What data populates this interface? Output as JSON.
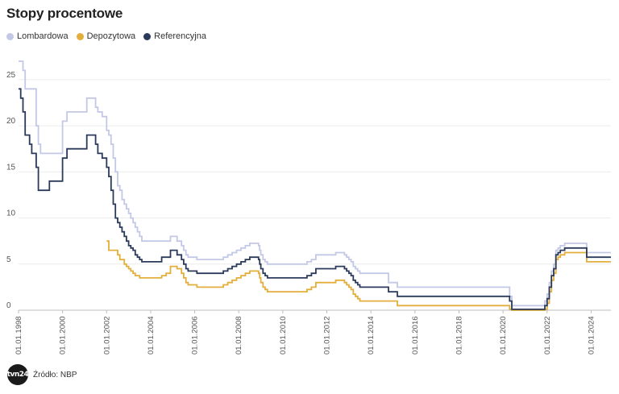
{
  "chart_data": {
    "type": "line",
    "title": "Stopy procentowe",
    "xlabel": "",
    "ylabel": "",
    "ylim": [
      0,
      27
    ],
    "yticks": [
      0,
      5,
      10,
      15,
      20,
      25
    ],
    "xticks": [
      "01.01.1998",
      "01.01.2000",
      "01.01.2002",
      "01.01.2004",
      "01.01.2006",
      "01.01.2008",
      "01.01.2010",
      "01.01.2012",
      "01.01.2014",
      "01.01.2016",
      "01.01.2018",
      "01.01.2020",
      "01.01.2022",
      "01.01.2024"
    ],
    "xtick_years": [
      1998,
      2000,
      2002,
      2004,
      2006,
      2008,
      2010,
      2012,
      2014,
      2016,
      2018,
      2020,
      2022,
      2024
    ],
    "xlim": [
      1998.0,
      2024.9
    ],
    "step": true,
    "series": [
      {
        "name": "Lombardowa",
        "color": "#c3c8e6",
        "x": [
          1998.0,
          1998.2,
          1998.3,
          1998.5,
          1998.8,
          1998.9,
          1999.0,
          1999.1,
          1999.9,
          2000.0,
          2000.2,
          2000.6,
          2001.1,
          2001.3,
          2001.5,
          2001.6,
          2001.8,
          2002.0,
          2002.1,
          2002.2,
          2002.3,
          2002.4,
          2002.5,
          2002.6,
          2002.7,
          2002.8,
          2002.9,
          2003.0,
          2003.1,
          2003.2,
          2003.3,
          2003.4,
          2003.5,
          2003.6,
          2004.5,
          2004.7,
          2004.9,
          2005.2,
          2005.4,
          2005.5,
          2005.6,
          2005.7,
          2006.1,
          2006.3,
          2007.3,
          2007.5,
          2007.7,
          2007.9,
          2008.1,
          2008.3,
          2008.5,
          2008.9,
          2008.95,
          2009.0,
          2009.1,
          2009.2,
          2009.3,
          2009.5,
          2010.9,
          2011.1,
          2011.3,
          2011.5,
          2012.4,
          2012.8,
          2012.9,
          2013.0,
          2013.1,
          2013.2,
          2013.3,
          2013.4,
          2013.5,
          2014.8,
          2015.2,
          2020.2,
          2020.3,
          2020.4,
          2021.8,
          2021.9,
          2022.0,
          2022.1,
          2022.2,
          2022.3,
          2022.4,
          2022.5,
          2022.6,
          2022.8,
          2023.7,
          2023.8,
          2024.9
        ],
        "y": [
          27.0,
          26.0,
          24.0,
          24.0,
          20.0,
          18.0,
          17.0,
          17.0,
          17.0,
          20.5,
          21.5,
          21.5,
          23.0,
          23.0,
          22.0,
          21.5,
          21.0,
          19.5,
          19.0,
          18.0,
          16.5,
          15.0,
          13.5,
          13.0,
          12.0,
          11.5,
          11.0,
          10.5,
          10.0,
          9.5,
          9.0,
          8.5,
          8.0,
          7.5,
          7.5,
          7.5,
          8.0,
          7.5,
          7.0,
          6.5,
          6.0,
          5.75,
          5.5,
          5.5,
          5.75,
          6.0,
          6.25,
          6.5,
          6.75,
          7.0,
          7.25,
          7.0,
          6.5,
          6.0,
          5.5,
          5.25,
          5.0,
          5.0,
          5.0,
          5.25,
          5.5,
          6.0,
          6.25,
          6.0,
          5.75,
          5.5,
          5.25,
          4.75,
          4.5,
          4.25,
          4.0,
          3.0,
          2.5,
          2.5,
          1.5,
          0.5,
          0.5,
          1.0,
          1.75,
          3.0,
          4.25,
          5.0,
          6.5,
          6.75,
          7.0,
          7.25,
          7.25,
          6.25,
          6.25
        ]
      },
      {
        "name": "Depozytowa",
        "color": "#e3ae3b",
        "x": [
          2002.0,
          2002.1,
          2002.4,
          2002.5,
          2002.6,
          2002.7,
          2002.8,
          2002.9,
          2003.0,
          2003.1,
          2003.2,
          2003.3,
          2003.4,
          2003.5,
          2003.6,
          2004.5,
          2004.7,
          2004.9,
          2005.2,
          2005.4,
          2005.5,
          2005.6,
          2005.7,
          2006.1,
          2006.3,
          2007.3,
          2007.5,
          2007.7,
          2007.9,
          2008.1,
          2008.3,
          2008.5,
          2008.9,
          2008.95,
          2009.0,
          2009.1,
          2009.2,
          2009.3,
          2009.5,
          2010.9,
          2011.1,
          2011.3,
          2011.5,
          2012.4,
          2012.8,
          2012.9,
          2013.0,
          2013.1,
          2013.2,
          2013.3,
          2013.4,
          2013.5,
          2014.8,
          2015.2,
          2020.2,
          2020.3,
          2020.4,
          2021.8,
          2021.9,
          2022.0,
          2022.1,
          2022.2,
          2022.3,
          2022.4,
          2022.5,
          2022.6,
          2022.8,
          2023.7,
          2023.8,
          2024.9
        ],
        "y": [
          7.5,
          6.5,
          6.5,
          6.0,
          5.5,
          5.5,
          5.0,
          4.75,
          4.5,
          4.25,
          4.0,
          3.75,
          3.75,
          3.5,
          3.5,
          3.75,
          4.0,
          4.75,
          4.5,
          4.0,
          3.5,
          3.0,
          2.75,
          2.5,
          2.5,
          2.75,
          3.0,
          3.25,
          3.5,
          3.75,
          4.0,
          4.25,
          4.0,
          3.5,
          3.0,
          2.5,
          2.25,
          2.0,
          2.0,
          2.0,
          2.25,
          2.5,
          3.0,
          3.25,
          3.0,
          2.75,
          2.5,
          2.25,
          1.75,
          1.5,
          1.25,
          1.0,
          1.0,
          0.5,
          0.5,
          0.1,
          0.0,
          0.0,
          0.1,
          0.75,
          2.0,
          3.25,
          4.0,
          5.5,
          5.75,
          6.0,
          6.25,
          6.25,
          5.25,
          5.25
        ]
      },
      {
        "name": "Referencyjna",
        "color": "#2b3a5b",
        "x": [
          1998.0,
          1998.1,
          1998.2,
          1998.3,
          1998.5,
          1998.6,
          1998.8,
          1998.9,
          1999.0,
          1999.4,
          1999.9,
          2000.0,
          2000.2,
          2000.6,
          2001.1,
          2001.3,
          2001.5,
          2001.6,
          2001.8,
          2002.0,
          2002.1,
          2002.2,
          2002.3,
          2002.4,
          2002.5,
          2002.6,
          2002.7,
          2002.8,
          2002.9,
          2003.0,
          2003.1,
          2003.2,
          2003.3,
          2003.4,
          2003.5,
          2003.6,
          2004.5,
          2004.7,
          2004.9,
          2005.2,
          2005.4,
          2005.5,
          2005.6,
          2005.7,
          2006.1,
          2006.3,
          2007.3,
          2007.5,
          2007.7,
          2007.9,
          2008.1,
          2008.3,
          2008.5,
          2008.9,
          2008.95,
          2009.0,
          2009.1,
          2009.2,
          2009.3,
          2009.5,
          2010.9,
          2011.1,
          2011.3,
          2011.5,
          2012.4,
          2012.8,
          2012.9,
          2013.0,
          2013.1,
          2013.2,
          2013.3,
          2013.4,
          2013.5,
          2014.8,
          2015.2,
          2020.2,
          2020.3,
          2020.4,
          2021.8,
          2021.9,
          2022.0,
          2022.1,
          2022.2,
          2022.3,
          2022.4,
          2022.5,
          2022.6,
          2022.8,
          2023.7,
          2023.8,
          2024.9
        ],
        "y": [
          24.0,
          23.0,
          21.5,
          19.0,
          18.0,
          17.0,
          15.5,
          13.0,
          13.0,
          14.0,
          14.0,
          16.5,
          17.5,
          17.5,
          19.0,
          19.0,
          18.0,
          17.0,
          16.5,
          15.5,
          14.5,
          13.0,
          11.5,
          10.0,
          9.5,
          9.0,
          8.5,
          8.0,
          7.5,
          7.0,
          6.75,
          6.5,
          6.0,
          5.75,
          5.5,
          5.25,
          5.75,
          5.75,
          6.5,
          6.0,
          5.5,
          5.0,
          4.5,
          4.25,
          4.0,
          4.0,
          4.25,
          4.5,
          4.75,
          5.0,
          5.25,
          5.5,
          5.75,
          5.5,
          5.0,
          4.5,
          4.0,
          3.75,
          3.5,
          3.5,
          3.5,
          3.75,
          4.0,
          4.5,
          4.75,
          4.5,
          4.25,
          4.0,
          3.75,
          3.25,
          3.0,
          2.75,
          2.5,
          2.0,
          1.5,
          1.5,
          1.0,
          0.1,
          0.1,
          0.5,
          1.25,
          2.5,
          3.75,
          4.5,
          6.0,
          6.25,
          6.5,
          6.75,
          6.75,
          5.75,
          5.75
        ]
      }
    ]
  },
  "footer": {
    "logo_text": "tvn24",
    "source": "Źródło: NBP"
  }
}
